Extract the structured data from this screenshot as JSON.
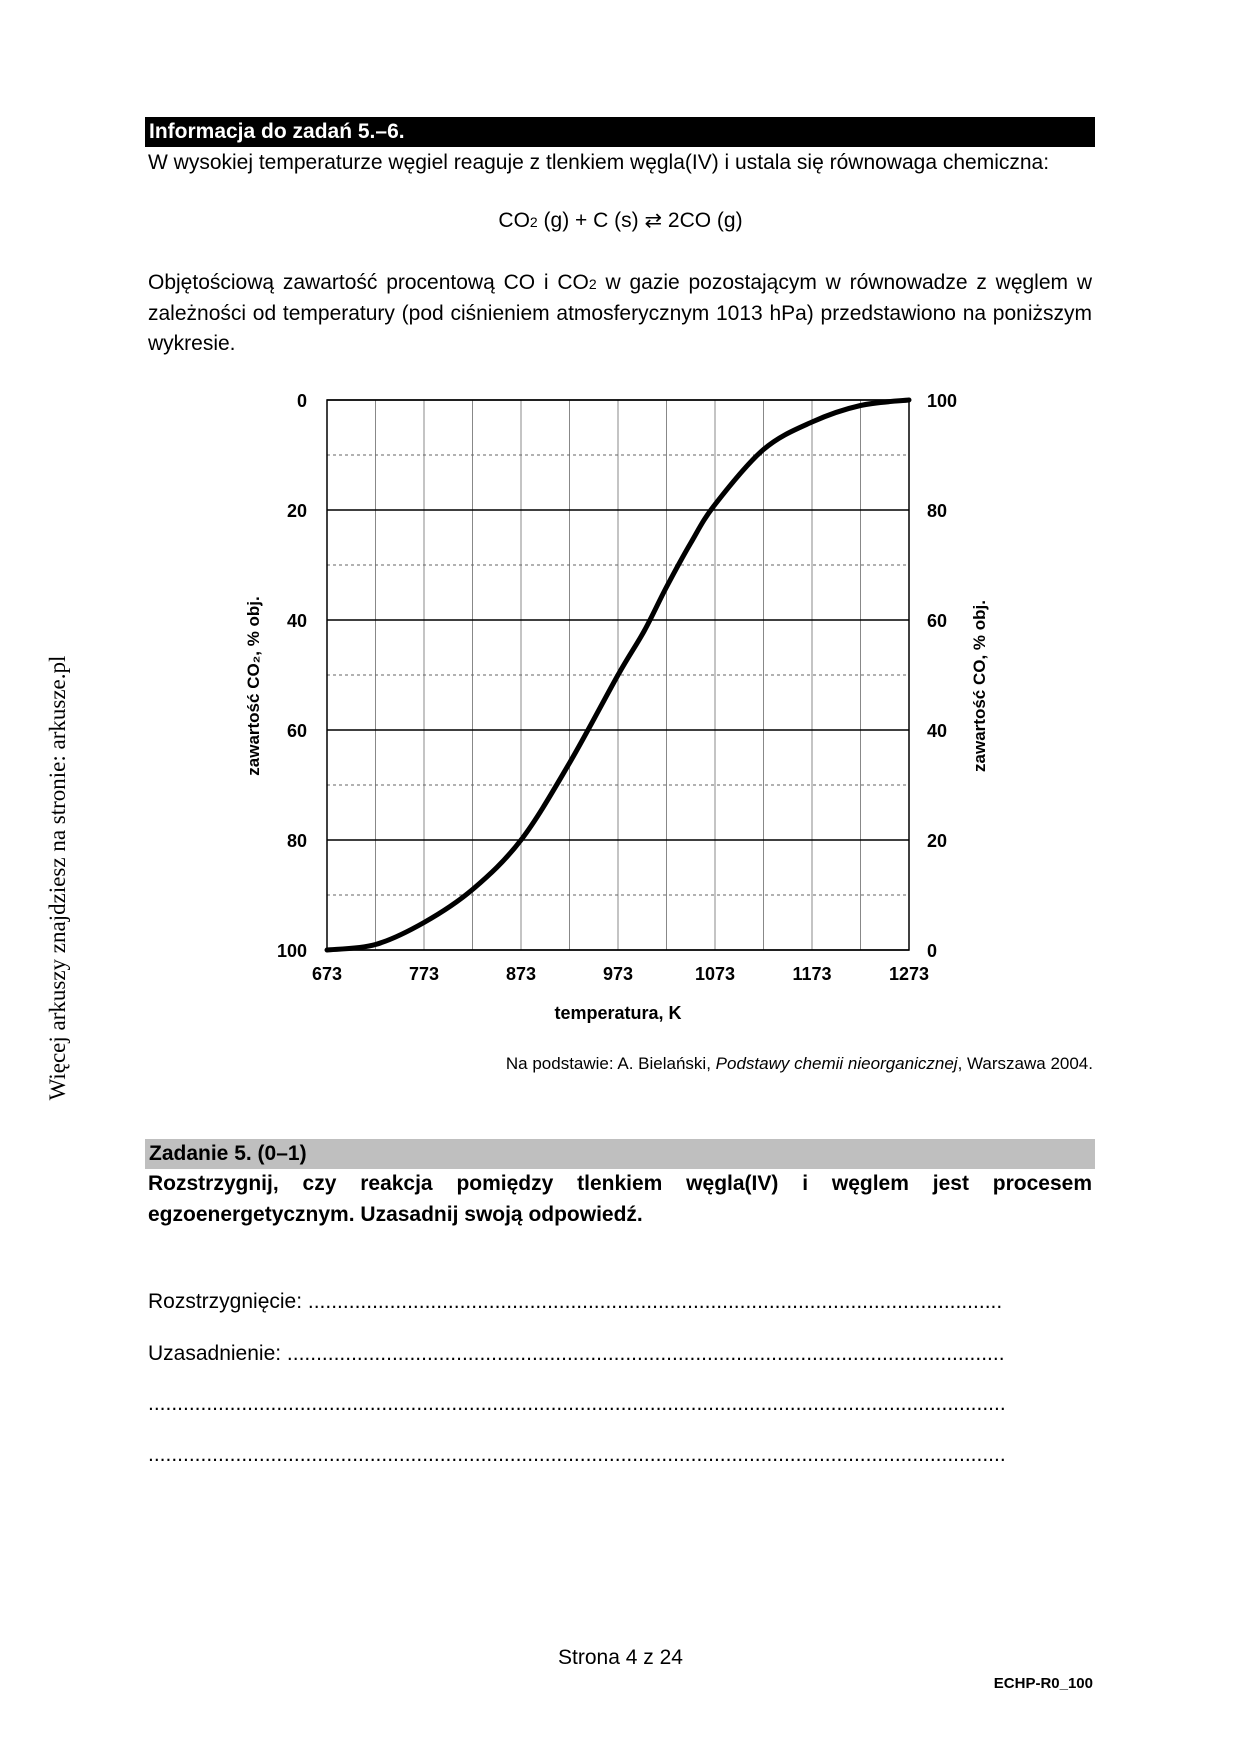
{
  "side_note": "Więcej arkuszy znajdziesz na stronie: arkusze.pl",
  "info_header": "Informacja do zadań 5.–6.",
  "intro_text": "W wysokiej temperaturze węgiel reaguje z tlenkiem węgla(IV) i ustala się równowaga chemiczna:",
  "equation": {
    "left_a": "CO",
    "left_sub": "2",
    "left_b": " (g) + C (s) ⇄ 2CO (g)"
  },
  "description": {
    "part1": "Objętościową zawartość procentową CO i CO",
    "sub": "2",
    "part2": " w gazie pozostającym w równowadze z węglem w zależności od temperatury (pod ciśnieniem atmosferycznym 1013 hPa) przedstawiono na poniższym wykresie."
  },
  "chart_data": {
    "type": "line",
    "xlabel": "temperatura, K",
    "ylabel_left": "zawartość CO₂, % obj.",
    "ylabel_right": "zawartość CO, % obj.",
    "x_ticks": [
      "673",
      "773",
      "873",
      "973",
      "1073",
      "1173",
      "1273"
    ],
    "y_left_ticks": [
      "0",
      "20",
      "40",
      "60",
      "80",
      "100"
    ],
    "y_right_ticks": [
      "100",
      "80",
      "60",
      "40",
      "20",
      "0"
    ],
    "xlim": [
      673,
      1273
    ],
    "ylim_co": [
      0,
      100
    ],
    "grid": true,
    "series": [
      {
        "x": [
          673,
          723,
          773,
          823,
          873,
          923,
          973,
          1000,
          1023,
          1048,
          1073,
          1123,
          1173,
          1223,
          1273
        ],
        "y_co": [
          0,
          1,
          5,
          11,
          20,
          34,
          50,
          58,
          66,
          74,
          81,
          91,
          96,
          99,
          100
        ]
      }
    ]
  },
  "source": {
    "prefix": "Na podstawie: A. Bielański, ",
    "title": "Podstawy chemii nieorganicznej",
    "suffix": ", Warszawa 2004."
  },
  "task_header": "Zadanie 5. (0–1)",
  "task_question": "Rozstrzygnij, czy reakcja pomiędzy tlenkiem węgla(IV) i węglem jest procesem egzoenergetycznym. Uzasadnij swoją odpowiedź.",
  "answer_lines": {
    "decision": "Rozstrzygnięcie: .......................................................................................................................",
    "justification": "Uzasadnienie: ...........................................................................................................................",
    "line3": "...................................................................................................................................................",
    "line4": "..................................................................................................................................................."
  },
  "page_number": "Strona 4 z 24",
  "code": "ECHP-R0_100"
}
